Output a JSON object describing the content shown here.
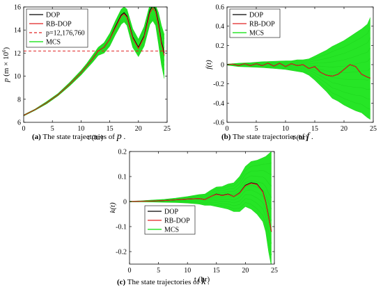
{
  "figure": {
    "captions": [
      {
        "label": "(a)",
        "text": "The state trajectories of",
        "symbol": "p",
        "end": "."
      },
      {
        "label": "(b)",
        "text": "The state trajectories of",
        "symbol": "f",
        "end": "."
      },
      {
        "label": "(c)",
        "text": "The state trajectories of",
        "symbol": "k",
        "end": "."
      }
    ]
  },
  "chart_data": [
    {
      "type": "line",
      "xlabel": "t (hr)",
      "ylabel": "p (m × 10^6)",
      "ylabel_main": "p",
      "ylabel_unit": "(m × 10",
      "ylabel_exp": "6",
      "ylabel_close": ")",
      "xlim": [
        0,
        25
      ],
      "ylim": [
        6,
        16
      ],
      "xticks": [
        0,
        5,
        10,
        15,
        20,
        25
      ],
      "yticks": [
        6,
        8,
        10,
        12,
        14,
        16
      ],
      "legend_position": "top-left",
      "grid": false,
      "series": [
        {
          "name": "DOP",
          "color": "#000000",
          "style": "solid",
          "x": [
            0,
            2,
            4,
            6,
            8,
            10,
            11,
            12,
            13,
            14,
            15,
            16,
            17,
            17.5,
            18,
            19,
            20,
            21,
            22,
            22.5,
            23,
            23.5,
            24,
            24.5
          ],
          "y": [
            6.6,
            7.1,
            7.7,
            8.4,
            9.3,
            10.3,
            10.9,
            11.5,
            12.2,
            12.5,
            13.2,
            14.3,
            15.3,
            15.5,
            15.2,
            13.4,
            12.5,
            13.5,
            15.7,
            16.1,
            15.8,
            14.6,
            13.0,
            12.0
          ]
        },
        {
          "name": "RB-DOP",
          "color": "#e02020",
          "style": "solid",
          "x": [
            0,
            2,
            4,
            6,
            8,
            10,
            11,
            12,
            13,
            14,
            15,
            16,
            17,
            17.5,
            18,
            19,
            20,
            21,
            22,
            22.5,
            23,
            23.5,
            24,
            24.5
          ],
          "y": [
            6.6,
            7.1,
            7.7,
            8.4,
            9.3,
            10.3,
            10.9,
            11.5,
            12.2,
            12.5,
            13.2,
            14.2,
            15.2,
            15.4,
            15.1,
            13.3,
            12.4,
            13.4,
            15.5,
            15.9,
            15.6,
            14.4,
            12.8,
            11.8
          ]
        },
        {
          "name": "p=12,176,760",
          "color": "#e02020",
          "style": "dashed",
          "x": [
            0,
            25
          ],
          "y": [
            12.18,
            12.18
          ]
        },
        {
          "name": "MCS",
          "color": "#00e000",
          "style": "band",
          "x": [
            0,
            2,
            4,
            6,
            8,
            10,
            11,
            12,
            13,
            14,
            15,
            16,
            17,
            17.5,
            18,
            19,
            20,
            21,
            22,
            22.5,
            23,
            23.5,
            24,
            24.5
          ],
          "lower": [
            6.55,
            7.05,
            7.6,
            8.3,
            9.15,
            10.1,
            10.65,
            11.2,
            11.8,
            12.0,
            12.6,
            13.6,
            14.5,
            14.7,
            14.4,
            12.5,
            11.7,
            12.6,
            14.5,
            14.8,
            14.4,
            12.8,
            11.0,
            9.8
          ],
          "upper": [
            6.65,
            7.15,
            7.8,
            8.5,
            9.45,
            10.5,
            11.1,
            11.8,
            12.5,
            12.9,
            13.7,
            14.8,
            15.8,
            16.0,
            15.8,
            14.1,
            13.2,
            14.3,
            16.2,
            16.2,
            16.1,
            15.5,
            14.4,
            13.6
          ]
        }
      ]
    },
    {
      "type": "line",
      "xlabel": "t (hr)",
      "ylabel": "f(t)",
      "xlim": [
        0,
        25
      ],
      "ylim": [
        -0.6,
        0.6
      ],
      "xticks": [
        0,
        5,
        10,
        15,
        20,
        25
      ],
      "yticks": [
        -0.6,
        -0.4,
        -0.2,
        0,
        0.2,
        0.4,
        0.6
      ],
      "legend_position": "top-left",
      "grid": false,
      "series": [
        {
          "name": "DOP",
          "color": "#000000",
          "style": "solid",
          "x": [
            0,
            1,
            2,
            3,
            4,
            5,
            6,
            7,
            8,
            9,
            10,
            11,
            12,
            13,
            14,
            15,
            16,
            17,
            18,
            19,
            20,
            21,
            22,
            23,
            24,
            24.5
          ],
          "y": [
            0.0,
            0.005,
            -0.01,
            0.01,
            -0.01,
            0.01,
            -0.01,
            0.015,
            -0.015,
            0.015,
            -0.02,
            0.01,
            -0.01,
            0.0,
            -0.04,
            -0.02,
            -0.08,
            -0.11,
            -0.12,
            -0.1,
            -0.05,
            0.0,
            -0.02,
            -0.1,
            -0.13,
            -0.14
          ]
        },
        {
          "name": "RB-DOP",
          "color": "#e02020",
          "style": "solid",
          "x": [
            0,
            1,
            2,
            3,
            4,
            5,
            6,
            7,
            8,
            9,
            10,
            11,
            12,
            13,
            14,
            15,
            16,
            17,
            18,
            19,
            20,
            21,
            22,
            23,
            24,
            24.5
          ],
          "y": [
            0.0,
            0.005,
            -0.01,
            0.01,
            -0.01,
            0.01,
            -0.01,
            0.015,
            -0.015,
            0.015,
            -0.02,
            0.01,
            -0.01,
            0.0,
            -0.04,
            -0.02,
            -0.08,
            -0.11,
            -0.12,
            -0.1,
            -0.05,
            0.0,
            -0.02,
            -0.1,
            -0.13,
            -0.14
          ]
        },
        {
          "name": "MCS",
          "color": "#00e000",
          "style": "band",
          "x": [
            0,
            2,
            4,
            6,
            8,
            10,
            11,
            12,
            13,
            14,
            15,
            16,
            17,
            18,
            19,
            20,
            21,
            22,
            23,
            24,
            24.5
          ],
          "lower": [
            -0.005,
            -0.02,
            -0.025,
            -0.03,
            -0.04,
            -0.05,
            -0.06,
            -0.07,
            -0.08,
            -0.11,
            -0.16,
            -0.22,
            -0.28,
            -0.35,
            -0.38,
            -0.42,
            -0.45,
            -0.48,
            -0.5,
            -0.55,
            -0.57
          ],
          "upper": [
            0.005,
            0.015,
            0.02,
            0.03,
            0.035,
            0.04,
            0.04,
            0.05,
            0.05,
            0.06,
            0.09,
            0.12,
            0.15,
            0.19,
            0.22,
            0.25,
            0.29,
            0.33,
            0.37,
            0.42,
            0.49
          ]
        }
      ]
    },
    {
      "type": "line",
      "xlabel": "t (hr)",
      "ylabel": "k(t)",
      "xlim": [
        0,
        25
      ],
      "ylim": [
        -0.25,
        0.2
      ],
      "xticks": [
        0,
        5,
        10,
        15,
        20,
        25
      ],
      "yticks": [
        -0.2,
        -0.1,
        0,
        0.1,
        0.2
      ],
      "legend_position": "bottom-center",
      "grid": false,
      "series": [
        {
          "name": "DOP",
          "color": "#000000",
          "style": "solid",
          "x": [
            0,
            2,
            4,
            6,
            8,
            10,
            12,
            13,
            14,
            15,
            16,
            17,
            18,
            19,
            20,
            21,
            22,
            23,
            23.5,
            24,
            24.5
          ],
          "y": [
            0.0,
            0.001,
            0.002,
            0.004,
            0.007,
            0.01,
            0.012,
            0.008,
            0.02,
            0.03,
            0.025,
            0.03,
            0.02,
            0.035,
            0.065,
            0.075,
            0.07,
            0.04,
            0.0,
            -0.06,
            -0.12
          ]
        },
        {
          "name": "RB-DOP",
          "color": "#e02020",
          "style": "solid",
          "x": [
            0,
            2,
            4,
            6,
            8,
            10,
            12,
            13,
            14,
            15,
            16,
            17,
            18,
            19,
            20,
            21,
            22,
            23,
            23.5,
            24,
            24.5
          ],
          "y": [
            0.0,
            0.001,
            0.002,
            0.004,
            0.007,
            0.01,
            0.012,
            0.008,
            0.02,
            0.029,
            0.024,
            0.029,
            0.02,
            0.034,
            0.063,
            0.073,
            0.068,
            0.038,
            -0.002,
            -0.062,
            -0.12
          ]
        },
        {
          "name": "MCS",
          "color": "#00e000",
          "style": "band",
          "x": [
            0,
            2,
            4,
            6,
            8,
            10,
            12,
            13,
            14,
            15,
            16,
            17,
            18,
            19,
            20,
            21,
            22,
            23,
            23.5,
            24,
            24.5
          ],
          "lower": [
            -0.001,
            -0.001,
            -0.002,
            -0.003,
            -0.004,
            -0.006,
            -0.01,
            -0.015,
            -0.015,
            -0.02,
            -0.025,
            -0.03,
            -0.04,
            -0.04,
            -0.02,
            -0.03,
            -0.05,
            -0.08,
            -0.12,
            -0.2,
            -0.26
          ],
          "upper": [
            0.001,
            0.003,
            0.006,
            0.009,
            0.014,
            0.02,
            0.028,
            0.03,
            0.045,
            0.058,
            0.06,
            0.07,
            0.075,
            0.1,
            0.14,
            0.16,
            0.165,
            0.175,
            0.18,
            0.19,
            0.2
          ]
        }
      ]
    }
  ]
}
